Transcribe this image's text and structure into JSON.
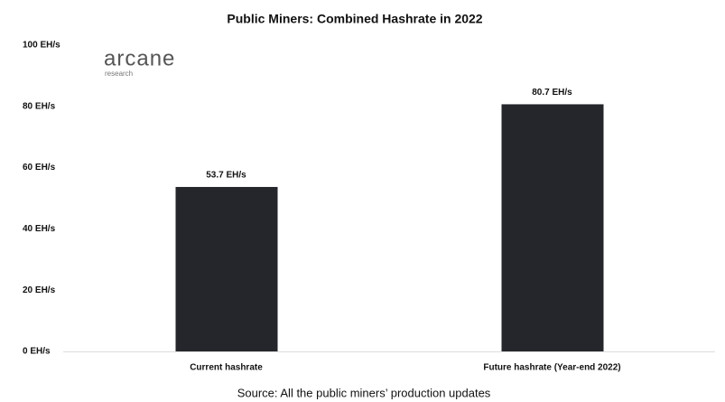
{
  "chart_data": {
    "type": "bar",
    "title": "Public Miners: Combined Hashrate in 2022",
    "logo": {
      "name": "arcane",
      "subname": "research"
    },
    "categories": [
      "Current hashrate",
      "Future hashrate (Year-end 2022)"
    ],
    "values": [
      53.7,
      80.7
    ],
    "value_labels": [
      "53.7 EH/s",
      "80.7 EH/s"
    ],
    "color": "#25262b",
    "ylim": [
      0,
      100
    ],
    "yticks": [
      {
        "value": 0,
        "label": "0 EH/s"
      },
      {
        "value": 20,
        "label": "20 EH/s"
      },
      {
        "value": 40,
        "label": "40 EH/s"
      },
      {
        "value": 60,
        "label": "60 EH/s"
      },
      {
        "value": 80,
        "label": "80 EH/s"
      },
      {
        "value": 100,
        "label": "100 EH/s"
      }
    ],
    "grid": false,
    "source": "Source: All the public miners’ production updates"
  }
}
